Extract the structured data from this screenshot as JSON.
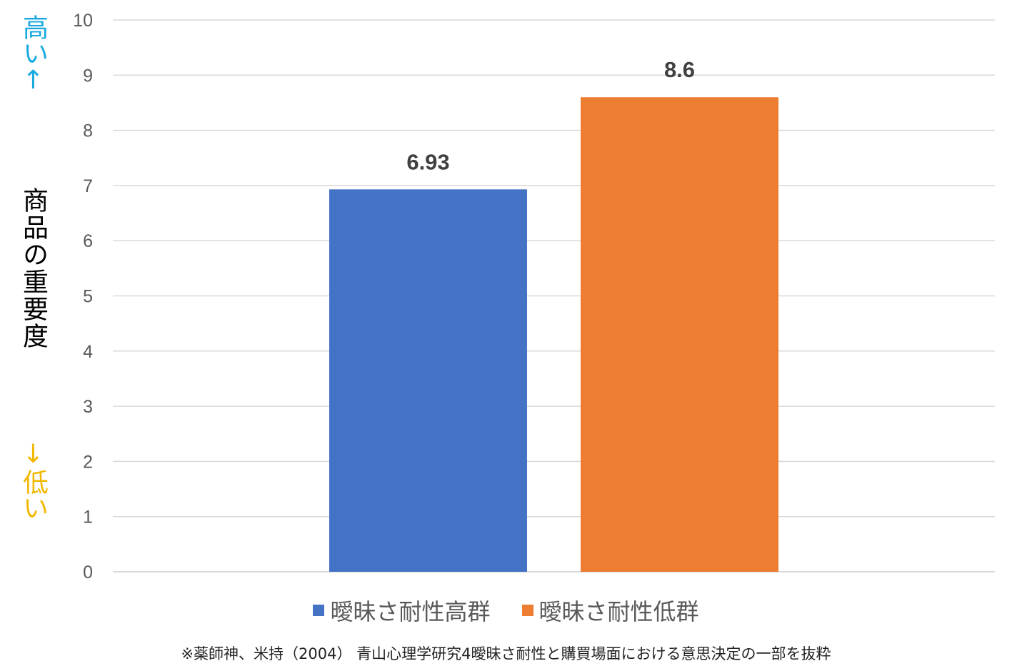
{
  "y_annotation": {
    "high": "高い↑",
    "high_color": "#17a9e0",
    "low": "↓低い",
    "low_color": "#f2b800",
    "label": "商品の重要度"
  },
  "note": "※薬師神、米持（2004） 青山心理学研究4曖昧さ耐性と購買場面における意思決定の一部を抜粋",
  "chart_data": {
    "type": "bar",
    "categories": [
      "曖昧さ耐性高群",
      "曖昧さ耐性低群"
    ],
    "series": [
      {
        "name": "曖昧さ耐性高群",
        "value": 6.93,
        "label": "6.93",
        "color": "#4472c4"
      },
      {
        "name": "曖昧さ耐性低群",
        "value": 8.6,
        "label": "8.6",
        "color": "#ed7d31"
      }
    ],
    "ylim": [
      0,
      10
    ],
    "yticks": [
      "0",
      "1",
      "2",
      "3",
      "4",
      "5",
      "6",
      "7",
      "8",
      "9",
      "10"
    ],
    "grid": true,
    "legend_position": "bottom"
  }
}
